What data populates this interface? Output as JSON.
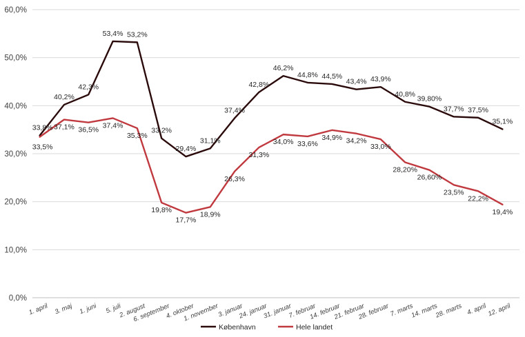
{
  "chart_data": {
    "type": "line",
    "title": "",
    "xlabel": "",
    "ylabel": "",
    "ylim": [
      0,
      60
    ],
    "y_ticks": [
      "0,0%",
      "10,0%",
      "20,0%",
      "30,0%",
      "40,0%",
      "50,0%",
      "60,0%"
    ],
    "grid": true,
    "legend_position": "bottom",
    "categories": [
      "1. april",
      "3. maj",
      "1. juni",
      "5. juli",
      "2. august",
      "6. september",
      "4. oktober",
      "1. november",
      "3. januar",
      "24. januar",
      "31. januar",
      "7. februar",
      "14. februar",
      "21. februar",
      "28. februar",
      "7. marts",
      "14. marts",
      "28. marts",
      "4. april",
      "12. april"
    ],
    "series": [
      {
        "name": "København",
        "color": "#2a0a0a",
        "values": [
          33.8,
          40.2,
          42.3,
          53.4,
          53.2,
          33.2,
          29.4,
          31.1,
          37.4,
          42.8,
          46.2,
          44.8,
          44.5,
          43.4,
          43.9,
          40.8,
          39.8,
          37.7,
          37.5,
          35.1
        ],
        "labels": [
          "33,8%",
          "40,2%",
          "42,3%",
          "53,4%",
          "53,2%",
          "33,2%",
          "29,4%",
          "31,1%",
          "37,4%",
          "42,8%",
          "46,2%",
          "44,8%",
          "44,5%",
          "43,4%",
          "43,9%",
          "40,8%",
          "39,80%",
          "37,7%",
          "37,5%",
          "35,1%"
        ]
      },
      {
        "name": "Hele landet",
        "color": "#c0393f",
        "values": [
          33.5,
          37.1,
          36.5,
          37.4,
          35.3,
          19.8,
          17.7,
          18.9,
          26.3,
          31.3,
          34.0,
          33.6,
          34.9,
          34.2,
          33.0,
          28.2,
          26.6,
          23.5,
          22.2,
          19.4
        ],
        "labels": [
          "33,5%",
          "37,1%",
          "36,5%",
          "37,4%",
          "35,3%",
          "19,8%",
          "17,7%",
          "18,9%",
          "26,3%",
          "31,3%",
          "34,0%",
          "33,6%",
          "34,9%",
          "34,2%",
          "33,0%",
          "28,20%",
          "26,60%",
          "23,5%",
          "22,2%",
          "19,4%"
        ]
      }
    ]
  }
}
